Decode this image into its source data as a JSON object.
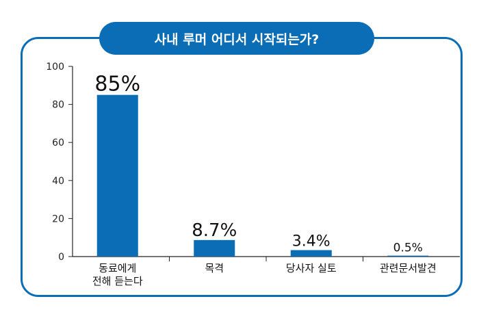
{
  "chart_data": {
    "type": "bar",
    "title": "사내 루머 어디서 시작되는가?",
    "categories": [
      [
        "동료에게",
        "전해 듣는다"
      ],
      [
        "목격"
      ],
      [
        "당사자 실토"
      ],
      [
        "관련문서발견"
      ]
    ],
    "values": [
      85,
      8.7,
      3.4,
      0.5
    ],
    "data_labels": [
      "85%",
      "8.7%",
      "3.4%",
      "0.5%"
    ],
    "ylim": [
      0,
      100
    ],
    "yticks": [
      0,
      20,
      40,
      60,
      80,
      100
    ],
    "grid": false,
    "colors": {
      "bar": "#0a6db5",
      "frame": "#0a6db5",
      "title_bg": "#0a6db5",
      "title_text": "#ffffff"
    }
  }
}
